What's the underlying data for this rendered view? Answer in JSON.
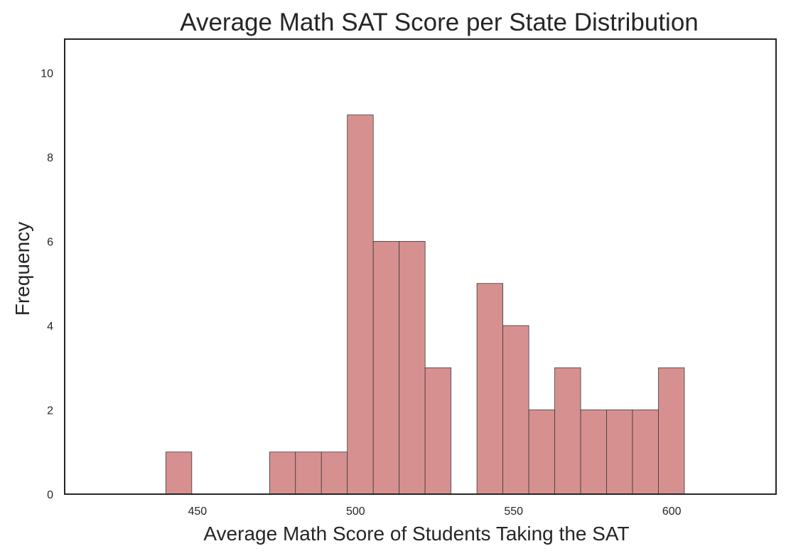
{
  "chart_data": {
    "type": "bar",
    "title": "Average Math SAT Score per State Distribution",
    "xlabel": "Average Math Score of Students Taking the SAT",
    "ylabel": "Frequency",
    "xlim": [
      408,
      633
    ],
    "ylim": [
      0,
      10.8
    ],
    "xticks": [
      450,
      500,
      550,
      600
    ],
    "yticks": [
      0,
      2,
      4,
      6,
      8,
      10
    ],
    "bin_width": 8.2,
    "bins": [
      {
        "start": 440.0,
        "count": 1
      },
      {
        "start": 472.8,
        "count": 1
      },
      {
        "start": 481.0,
        "count": 1
      },
      {
        "start": 489.2,
        "count": 1
      },
      {
        "start": 497.4,
        "count": 9
      },
      {
        "start": 505.6,
        "count": 6
      },
      {
        "start": 513.8,
        "count": 6
      },
      {
        "start": 522.0,
        "count": 3
      },
      {
        "start": 538.4,
        "count": 5
      },
      {
        "start": 546.6,
        "count": 4
      },
      {
        "start": 554.8,
        "count": 2
      },
      {
        "start": 563.0,
        "count": 3
      },
      {
        "start": 571.2,
        "count": 2
      },
      {
        "start": 579.4,
        "count": 2
      },
      {
        "start": 587.6,
        "count": 2
      },
      {
        "start": 595.8,
        "count": 3
      }
    ],
    "colors": {
      "bar": "#d79090",
      "bar_edge": "#3a3a3a",
      "axes": "#262626",
      "text": "#262626"
    },
    "grid": false,
    "legend": "none"
  }
}
